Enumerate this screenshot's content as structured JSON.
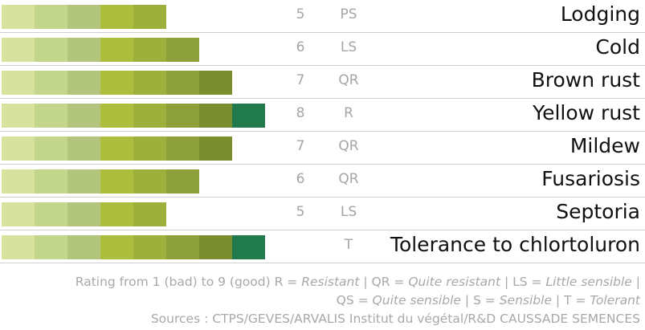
{
  "chart_data": {
    "type": "bar",
    "orientation": "horizontal",
    "scale_max": 9,
    "segment_colors": [
      "#d8e29f",
      "#c4d58c",
      "#b3c47c",
      "#adbd3d",
      "#9cb03b",
      "#8da039",
      "#7a8e30",
      "#217a4c"
    ],
    "rows": [
      {
        "label": "Lodging",
        "value": 5,
        "code": "PS"
      },
      {
        "label": "Cold",
        "value": 6,
        "code": "LS"
      },
      {
        "label": "Brown rust",
        "value": 7,
        "code": "QR"
      },
      {
        "label": "Yellow rust",
        "value": 8,
        "code": "R"
      },
      {
        "label": "Mildew",
        "value": 7,
        "code": "QR"
      },
      {
        "label": "Fusariosis",
        "value": 6,
        "code": "QR"
      },
      {
        "label": "Septoria",
        "value": 5,
        "code": "LS"
      },
      {
        "label": "Tolerance to chlortoluron",
        "value": 8,
        "score_shown": "",
        "code": "T"
      }
    ]
  },
  "footnote": {
    "line1_prefix": "Rating from 1 (bad) to 9 (good) R = ",
    "resistant": "Resistant",
    "sep1": " | QR = ",
    "quite_resistant": "Quite resistant",
    "sep2": " | LS = ",
    "little_sensible": "Little sensible",
    "line1_end": " |",
    "qs_prefix": "QS = ",
    "quite_sensible": "Quite sensible",
    "sep3": " | S = ",
    "sensible": "Sensible",
    "sep4": " | T = ",
    "tolerant": "Tolerant",
    "sources": "Sources : CTPS/GEVES/ARVALIS Institut du végétal/R&D CAUSSADE SEMENCES"
  }
}
